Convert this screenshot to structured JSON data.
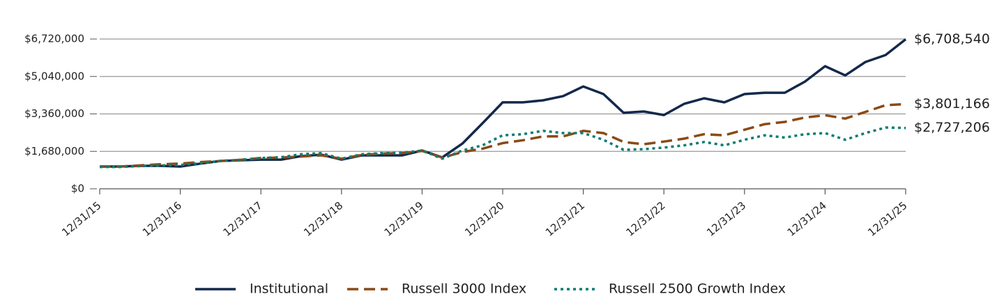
{
  "chart_data": {
    "type": "line",
    "categories": [
      "12/31/15",
      null,
      null,
      null,
      "12/31/16",
      null,
      null,
      null,
      "12/31/17",
      null,
      null,
      null,
      "12/31/18",
      null,
      null,
      null,
      "12/31/19",
      null,
      null,
      null,
      "12/31/20",
      null,
      null,
      null,
      "12/31/21",
      null,
      null,
      null,
      "12/31/22",
      null,
      null,
      null,
      "12/31/23",
      null,
      null,
      null,
      "12/31/24",
      null,
      null,
      null,
      "12/31/25"
    ],
    "ylim": [
      0,
      6720000
    ],
    "yticks": [
      {
        "value": 0,
        "label": "$0"
      },
      {
        "value": 1680000,
        "label": "$1,680,000"
      },
      {
        "value": 3360000,
        "label": "$3,360,000"
      },
      {
        "value": 5040000,
        "label": "$5,040,000"
      },
      {
        "value": 6720000,
        "label": "$6,720,000"
      }
    ],
    "grid": true,
    "legend": "bottom",
    "series": [
      {
        "name": "Institutional",
        "color": "#13294b",
        "style": "solid",
        "values": [
          1000000,
          1000000,
          1030000,
          1030000,
          1000000,
          1130000,
          1250000,
          1280000,
          1310000,
          1310000,
          1470000,
          1530000,
          1310000,
          1500000,
          1500000,
          1500000,
          1720000,
          1410000,
          2030000,
          2940000,
          3880000,
          3880000,
          3970000,
          4160000,
          4590000,
          4250000,
          3410000,
          3470000,
          3310000,
          3810000,
          4060000,
          3880000,
          4250000,
          4310000,
          4310000,
          4810000,
          5500000,
          5090000,
          5690000,
          6000000,
          6708540
        ],
        "value_labels": [
          null,
          null,
          null,
          null,
          null,
          null,
          null,
          null,
          null,
          null,
          null,
          null,
          null,
          null,
          null,
          null,
          null,
          null,
          null,
          null,
          null,
          null,
          null,
          null,
          null,
          null,
          null,
          null,
          null,
          null,
          null,
          null,
          null,
          null,
          null,
          null,
          null,
          null,
          null,
          null,
          "$6,708,540"
        ]
      },
      {
        "name": "Russell 3000 Index",
        "color": "#8a4a16",
        "style": "dashed",
        "values": [
          1000000,
          1000000,
          1050000,
          1100000,
          1130000,
          1200000,
          1250000,
          1300000,
          1380000,
          1400000,
          1450000,
          1500000,
          1350000,
          1520000,
          1580000,
          1600000,
          1700000,
          1400000,
          1650000,
          1800000,
          2050000,
          2180000,
          2350000,
          2350000,
          2600000,
          2500000,
          2100000,
          2000000,
          2120000,
          2250000,
          2450000,
          2400000,
          2650000,
          2900000,
          3000000,
          3200000,
          3300000,
          3150000,
          3450000,
          3750000,
          3801166
        ],
        "value_labels": [
          null,
          null,
          null,
          null,
          null,
          null,
          null,
          null,
          null,
          null,
          null,
          null,
          null,
          null,
          null,
          null,
          null,
          null,
          null,
          null,
          null,
          null,
          null,
          null,
          null,
          null,
          null,
          null,
          null,
          null,
          null,
          null,
          null,
          null,
          null,
          null,
          null,
          null,
          null,
          null,
          "$3,801,166"
        ]
      },
      {
        "name": "Russell 2500 Growth Index",
        "color": "#0e7c72",
        "style": "dotted",
        "values": [
          980000,
          980000,
          1020000,
          1050000,
          1070000,
          1150000,
          1250000,
          1300000,
          1380000,
          1420000,
          1550000,
          1600000,
          1350000,
          1550000,
          1600000,
          1620000,
          1720000,
          1350000,
          1720000,
          1950000,
          2400000,
          2450000,
          2600000,
          2500000,
          2500000,
          2200000,
          1750000,
          1780000,
          1850000,
          1950000,
          2100000,
          1950000,
          2200000,
          2400000,
          2300000,
          2450000,
          2500000,
          2200000,
          2500000,
          2750000,
          2727206
        ],
        "value_labels": [
          null,
          null,
          null,
          null,
          null,
          null,
          null,
          null,
          null,
          null,
          null,
          null,
          null,
          null,
          null,
          null,
          null,
          null,
          null,
          null,
          null,
          null,
          null,
          null,
          null,
          null,
          null,
          null,
          null,
          null,
          null,
          null,
          null,
          null,
          null,
          null,
          null,
          null,
          null,
          null,
          "$2,727,206"
        ]
      }
    ]
  }
}
